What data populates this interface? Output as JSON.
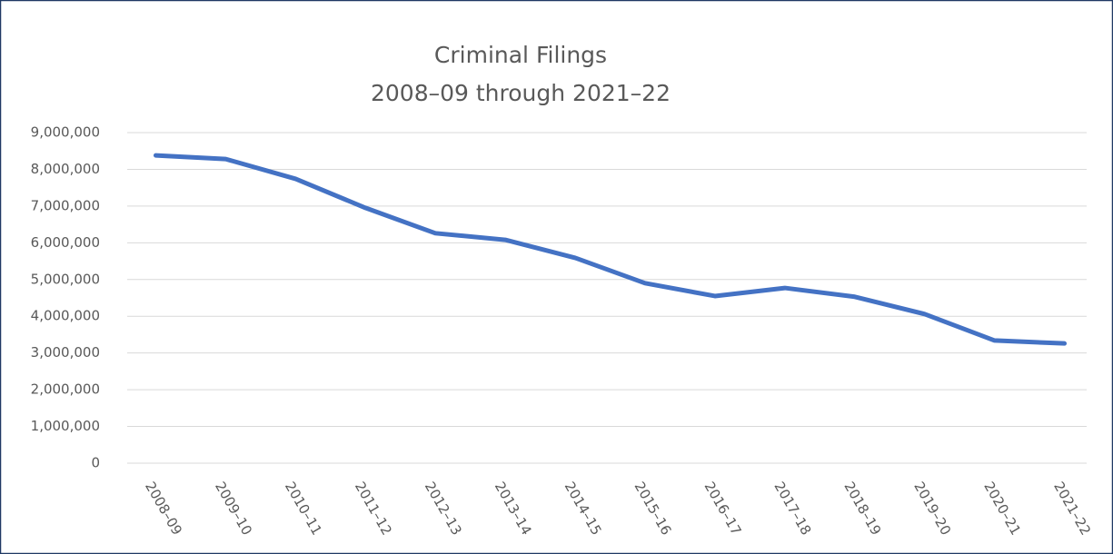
{
  "chart_data": {
    "type": "line",
    "title": "Criminal Filings",
    "subtitle": "2008–09 through 2021–22",
    "categories": [
      "2008–09",
      "2009–10",
      "2010–11",
      "2011–12",
      "2012–13",
      "2013–14",
      "2014–15",
      "2015–16",
      "2016–17",
      "2017–18",
      "2018–19",
      "2019–20",
      "2020–21",
      "2021–22"
    ],
    "series": [
      {
        "name": "Criminal Filings",
        "color": "#4472c4",
        "values": [
          8380000,
          8280000,
          7740000,
          6950000,
          6260000,
          6080000,
          5590000,
          4900000,
          4550000,
          4770000,
          4530000,
          4060000,
          3340000,
          3260000
        ]
      }
    ],
    "ylim": [
      0,
      9000000
    ],
    "yticks": [
      {
        "value": 0,
        "label": "0"
      },
      {
        "value": 1000000,
        "label": "1,000,000"
      },
      {
        "value": 2000000,
        "label": "2,000,000"
      },
      {
        "value": 3000000,
        "label": "3,000,000"
      },
      {
        "value": 4000000,
        "label": "4,000,000"
      },
      {
        "value": 5000000,
        "label": "5,000,000"
      },
      {
        "value": 6000000,
        "label": "6,000,000"
      },
      {
        "value": 7000000,
        "label": "7,000,000"
      },
      {
        "value": 8000000,
        "label": "8,000,000"
      },
      {
        "value": 9000000,
        "label": "9,000,000"
      }
    ],
    "grid": true
  }
}
